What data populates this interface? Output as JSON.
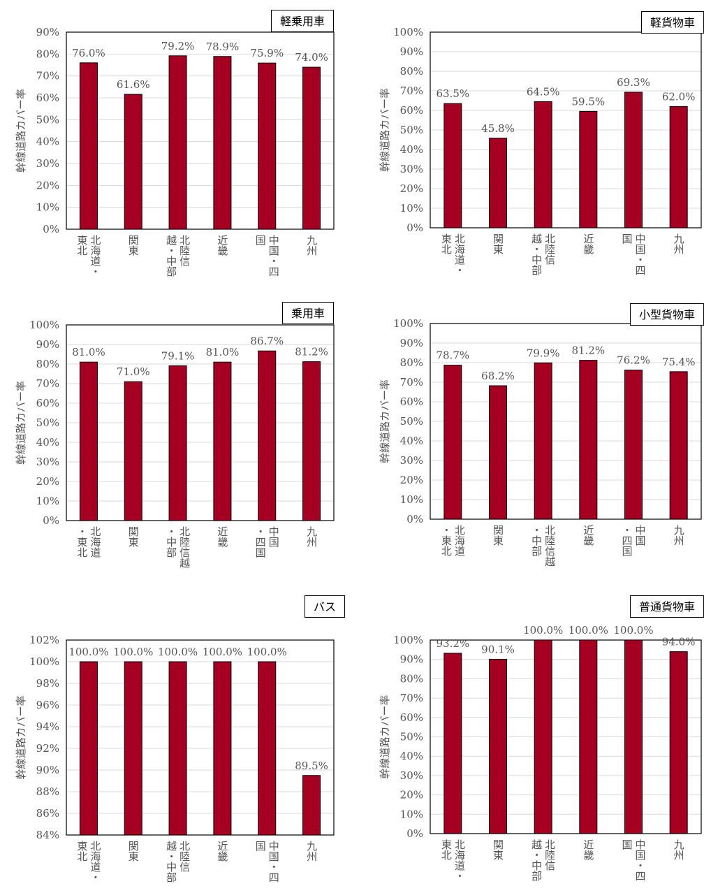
{
  "bar_color": "#a50021",
  "chart_data": [
    {
      "type": "bar",
      "title": "軽乗用車",
      "ylabel": "幹線道路カバー率",
      "ylim": [
        0,
        90
      ],
      "yticks": [
        "0%",
        "10%",
        "20%",
        "30%",
        "40%",
        "50%",
        "60%",
        "70%",
        "80%",
        "90%"
      ],
      "categories": [
        [
          "北海道・",
          "東北"
        ],
        [
          "関東"
        ],
        [
          "北陸信",
          "越・中部"
        ],
        [
          "近畿"
        ],
        [
          "中国・四",
          "国"
        ],
        [
          "九州"
        ]
      ],
      "values": [
        76.0,
        61.6,
        79.2,
        78.9,
        75.9,
        74.0
      ],
      "labels": [
        "76.0%",
        "61.6%",
        "79.2%",
        "78.9%",
        "75.9%",
        "74.0%"
      ]
    },
    {
      "type": "bar",
      "title": "軽貨物車",
      "ylabel": "幹線道路カバー率",
      "ylim": [
        0,
        100
      ],
      "yticks": [
        "0%",
        "10%",
        "20%",
        "30%",
        "40%",
        "50%",
        "60%",
        "70%",
        "80%",
        "90%",
        "100%"
      ],
      "categories": [
        [
          "北海道・",
          "東北"
        ],
        [
          "関東"
        ],
        [
          "北陸信",
          "越・中部"
        ],
        [
          "近畿"
        ],
        [
          "中国・四",
          "国"
        ],
        [
          "九州"
        ]
      ],
      "values": [
        63.5,
        45.8,
        64.5,
        59.5,
        69.3,
        62.0
      ],
      "labels": [
        "63.5%",
        "45.8%",
        "64.5%",
        "59.5%",
        "69.3%",
        "62.0%"
      ]
    },
    {
      "type": "bar",
      "title": "乗用車",
      "ylabel": "幹線道路カバー率",
      "ylim": [
        0,
        100
      ],
      "yticks": [
        "0%",
        "10%",
        "20%",
        "30%",
        "40%",
        "50%",
        "60%",
        "70%",
        "80%",
        "90%",
        "100%"
      ],
      "categories": [
        [
          "北海道",
          "・東北"
        ],
        [
          "関東"
        ],
        [
          "北陸信越",
          "・中部"
        ],
        [
          "近畿"
        ],
        [
          "中国",
          "・四国"
        ],
        [
          "九州"
        ]
      ],
      "values": [
        81.0,
        71.0,
        79.1,
        81.0,
        86.7,
        81.2
      ],
      "labels": [
        "81.0%",
        "71.0%",
        "79.1%",
        "81.0%",
        "86.7%",
        "81.2%"
      ]
    },
    {
      "type": "bar",
      "title": "小型貨物車",
      "ylabel": "幹線道路カバー率",
      "ylim": [
        0,
        100
      ],
      "yticks": [
        "0%",
        "10%",
        "20%",
        "30%",
        "40%",
        "50%",
        "60%",
        "70%",
        "80%",
        "90%",
        "100%"
      ],
      "categories": [
        [
          "北海道",
          "・東北"
        ],
        [
          "関東"
        ],
        [
          "北陸信越",
          "・中部"
        ],
        [
          "近畿"
        ],
        [
          "中国",
          "・四国"
        ],
        [
          "九州"
        ]
      ],
      "values": [
        78.7,
        68.2,
        79.9,
        81.2,
        76.2,
        75.4
      ],
      "labels": [
        "78.7%",
        "68.2%",
        "79.9%",
        "81.2%",
        "76.2%",
        "75.4%"
      ]
    },
    {
      "type": "bar",
      "title": "バス",
      "ylabel": "幹線道路カバー率",
      "ylim": [
        84,
        102
      ],
      "yticks": [
        "84%",
        "86%",
        "88%",
        "90%",
        "92%",
        "94%",
        "96%",
        "98%",
        "100%",
        "102%"
      ],
      "categories": [
        [
          "北海道・",
          "東北"
        ],
        [
          "関東"
        ],
        [
          "北陸信",
          "越・中部"
        ],
        [
          "近畿"
        ],
        [
          "中国・四",
          "国"
        ],
        [
          "九州"
        ]
      ],
      "values": [
        100.0,
        100.0,
        100.0,
        100.0,
        100.0,
        89.5
      ],
      "labels": [
        "100.0%",
        "100.0%",
        "100.0%",
        "100.0%",
        "100.0%",
        "89.5%"
      ]
    },
    {
      "type": "bar",
      "title": "普通貨物車",
      "ylabel": "幹線道路カバー率",
      "ylim": [
        0,
        100
      ],
      "yticks": [
        "0%",
        "10%",
        "20%",
        "30%",
        "40%",
        "50%",
        "60%",
        "70%",
        "80%",
        "90%",
        "100%"
      ],
      "categories": [
        [
          "北海道・",
          "東北"
        ],
        [
          "関東"
        ],
        [
          "北陸信",
          "越・中部"
        ],
        [
          "近畿"
        ],
        [
          "中国・四",
          "国"
        ],
        [
          "九州"
        ]
      ],
      "values": [
        93.2,
        90.1,
        100.0,
        100.0,
        100.0,
        94.0
      ],
      "labels": [
        "93.2%",
        "90.1%",
        "100.0%",
        "100.0%",
        "100.0%",
        "94.0%"
      ]
    }
  ]
}
